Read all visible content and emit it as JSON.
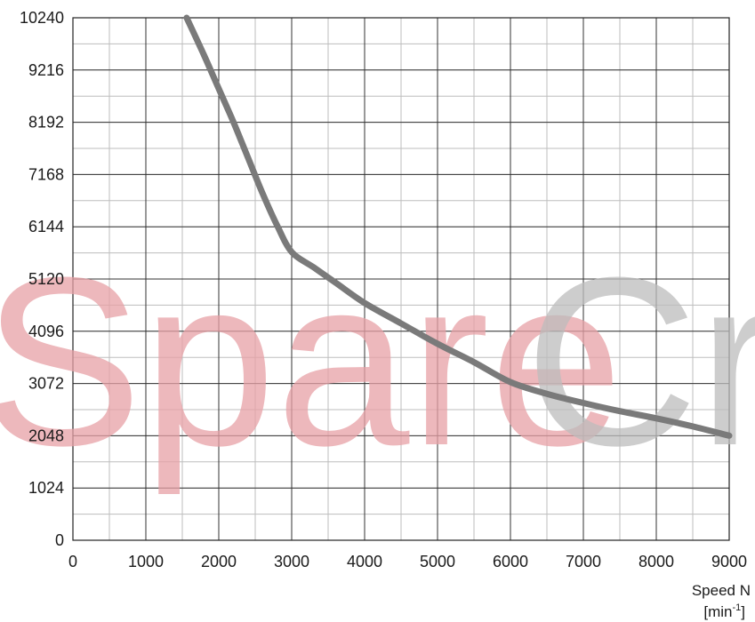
{
  "chart_data": {
    "type": "line",
    "title": "",
    "xlabel_line1": "Speed N",
    "xlabel_unit_main": "[min",
    "xlabel_unit_sup": "-1",
    "xlabel_unit_end": "]",
    "ylabel": "",
    "xlim": [
      0,
      9000
    ],
    "ylim": [
      0,
      10240
    ],
    "x_major_ticks": [
      0,
      1000,
      2000,
      3000,
      4000,
      5000,
      6000,
      7000,
      8000,
      9000
    ],
    "y_major_ticks": [
      0,
      1024,
      2048,
      3072,
      4096,
      5120,
      6144,
      7168,
      8192,
      9216,
      10240
    ],
    "x_minor_step": 500,
    "y_minor_step": 512,
    "grid": true,
    "line_color": "#7a7a7a",
    "series": [
      {
        "x": [
          1560,
          1800,
          2000,
          2200,
          2400,
          2600,
          2800,
          3000,
          3300,
          3600,
          4000,
          4500,
          5000,
          5500,
          6000,
          6500,
          7000,
          7500,
          8000,
          8500,
          9000
        ],
        "values": [
          10240,
          9500,
          8850,
          8200,
          7500,
          6800,
          6170,
          5650,
          5350,
          5050,
          4650,
          4250,
          3850,
          3490,
          3100,
          2870,
          2690,
          2530,
          2390,
          2230,
          2050
        ]
      }
    ]
  },
  "watermark": {
    "part1": "Spare",
    "part2": "Cru",
    "color1": "#e8a1a6",
    "color2": "#bdbdbd"
  }
}
